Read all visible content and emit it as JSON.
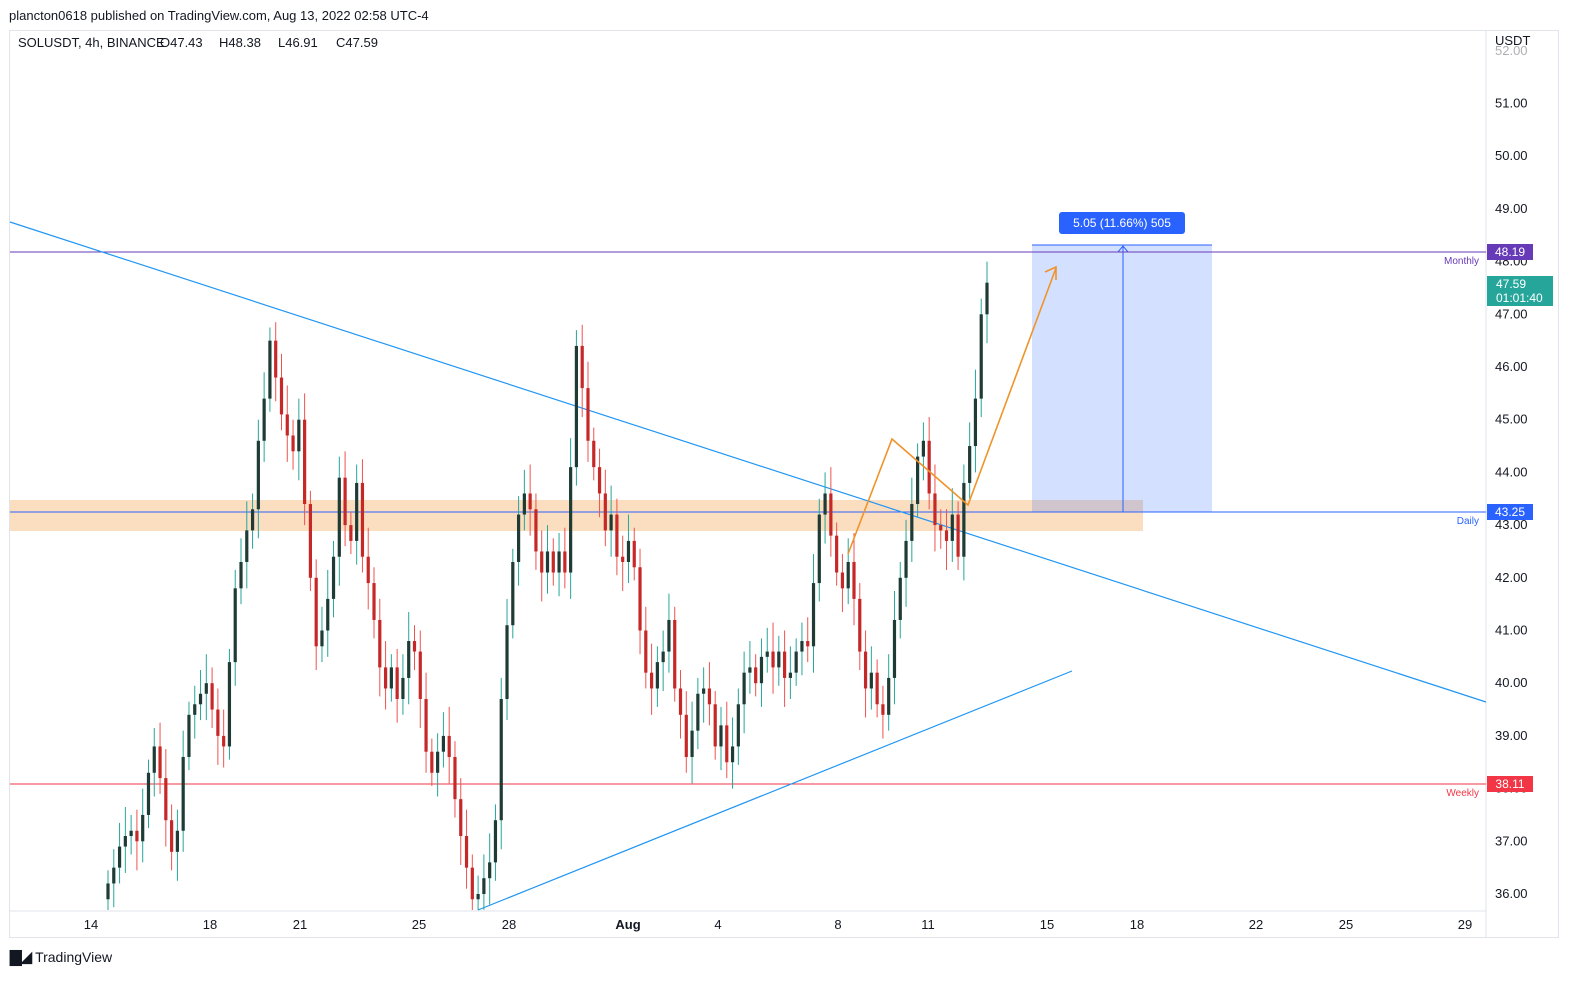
{
  "header": {
    "publisher": "plancton0618 published on TradingView.com, Aug 13, 2022 02:58 UTC-4",
    "symbol_line": "SOLUSDT, 4h, BINANCE",
    "ohlc": {
      "open": "O47.43",
      "high": "H48.38",
      "low": "L46.91",
      "close": "C47.59"
    }
  },
  "axis": {
    "currency": "USDT",
    "price_ticks": [
      "36.00",
      "37.00",
      "38.00",
      "39.00",
      "40.00",
      "41.00",
      "42.00",
      "43.00",
      "44.00",
      "45.00",
      "46.00",
      "47.00",
      "48.00",
      "49.00",
      "50.00",
      "51.00",
      "52.00"
    ],
    "time_ticks": [
      "14",
      "18",
      "21",
      "25",
      "28",
      "Aug",
      "4",
      "8",
      "11",
      "15",
      "18",
      "22",
      "25",
      "29"
    ],
    "ylim": [
      35.7,
      52.3
    ]
  },
  "levels": {
    "monthly": {
      "label": "Monthly",
      "price": "48.19",
      "color": "#673ab7"
    },
    "daily": {
      "label": "Daily",
      "price": "43.25",
      "color": "#2962ff"
    },
    "weekly": {
      "label": "Weekly",
      "price": "38.11",
      "color": "#f23645"
    }
  },
  "last_price": {
    "price": "47.59",
    "countdown": "01:01:40",
    "color": "#26a69a"
  },
  "measure": {
    "label": "5.05 (11.66%) 505",
    "from": 43.25,
    "to": 48.3
  },
  "colors": {
    "up": "#26a69a",
    "down": "#ef5350",
    "zone": "#f9c896",
    "trend": "#2196f3",
    "arrow": "#f0932b"
  },
  "footer": {
    "brand": "TradingView"
  },
  "chart_data": {
    "type": "candlestick",
    "timeframe": "4h",
    "close_series": [
      36.2,
      36.5,
      36.9,
      37.1,
      37.2,
      37.0,
      37.5,
      38.3,
      38.8,
      38.2,
      37.4,
      36.8,
      37.2,
      38.6,
      39.4,
      39.6,
      39.8,
      40.0,
      39.5,
      39.0,
      38.8,
      40.4,
      41.8,
      42.3,
      42.9,
      43.3,
      44.6,
      45.4,
      46.5,
      45.8,
      45.1,
      44.7,
      44.4,
      45.0,
      43.4,
      42.0,
      40.7,
      41.0,
      41.6,
      42.4,
      43.9,
      43.0,
      42.7,
      43.8,
      42.4,
      41.9,
      41.2,
      40.3,
      39.9,
      40.3,
      39.7,
      40.1,
      40.8,
      40.6,
      39.7,
      38.7,
      38.3,
      38.7,
      39.0,
      38.6,
      37.8,
      37.1,
      36.5,
      35.9,
      36.0,
      36.3,
      36.6,
      37.4,
      39.7,
      41.1,
      42.3,
      43.2,
      43.6,
      43.3,
      42.5,
      42.1,
      42.5,
      42.1,
      42.5,
      42.1,
      44.1,
      46.4,
      45.6,
      44.6,
      44.1,
      43.6,
      42.9,
      43.2,
      42.4,
      42.3,
      42.7,
      42.2,
      41.0,
      40.2,
      39.9,
      40.4,
      40.6,
      41.2,
      39.9,
      39.4,
      38.6,
      39.1,
      39.8,
      39.9,
      39.6,
      38.8,
      39.2,
      38.5,
      38.8,
      39.6,
      40.2,
      40.3,
      40.0,
      40.5,
      40.6,
      40.3,
      40.6,
      40.1,
      40.2,
      40.6,
      40.8,
      40.7,
      41.9,
      43.2,
      43.6,
      42.8,
      42.1,
      41.8,
      42.3,
      41.6,
      40.6,
      39.9,
      40.2,
      39.6,
      39.4,
      40.1,
      41.2,
      42.0,
      42.7,
      43.4,
      44.3,
      44.6,
      43.6,
      43.0,
      42.9,
      42.7,
      43.2,
      42.4,
      43.8,
      44.5,
      45.4,
      47.0,
      47.6
    ]
  }
}
